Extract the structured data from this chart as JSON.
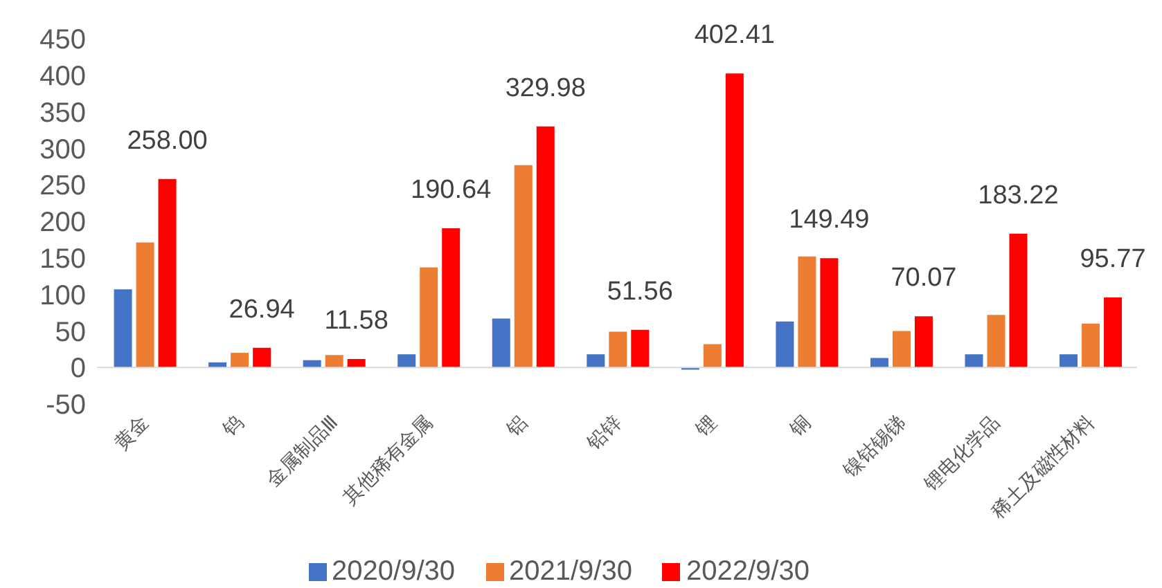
{
  "chart_data": {
    "type": "bar",
    "categories": [
      "黄金",
      "钨",
      "金属制品Ⅲ",
      "其他稀有金属",
      "铝",
      "铅锌",
      "锂",
      "铜",
      "镍钴锡锑",
      "锂电化学品",
      "稀土及磁性材料"
    ],
    "series": [
      {
        "name": "2020/9/30",
        "color": "#4472c4",
        "values": [
          107,
          7,
          10,
          18,
          67,
          18,
          -3,
          63,
          13,
          18,
          18
        ]
      },
      {
        "name": "2021/9/30",
        "color": "#ed7d31",
        "values": [
          171,
          20,
          17,
          137,
          277,
          49,
          32,
          152,
          50,
          72,
          60
        ]
      },
      {
        "name": "2022/9/30",
        "color": "#ff0000",
        "values": [
          258.0,
          26.94,
          11.58,
          190.64,
          329.98,
          51.56,
          402.41,
          149.49,
          70.07,
          183.22,
          95.77
        ],
        "value_labels": [
          "258.00",
          "26.94",
          "11.58",
          "190.64",
          "329.98",
          "51.56",
          "402.41",
          "149.49",
          "70.07",
          "183.22",
          "95.77"
        ]
      }
    ],
    "ylim": [
      -50,
      450
    ],
    "yticks": [
      -50,
      0,
      50,
      100,
      150,
      200,
      250,
      300,
      350,
      400,
      450
    ],
    "grid": false,
    "legend": "bottom"
  }
}
